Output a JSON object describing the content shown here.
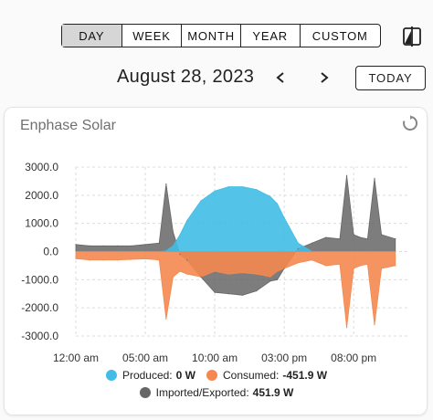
{
  "period": {
    "options": [
      "DAY",
      "WEEK",
      "MONTH",
      "YEAR",
      "CUSTOM"
    ],
    "selected": "DAY"
  },
  "date": {
    "title": "August 28, 2023",
    "prev_glyph": "‹",
    "next_glyph": "›",
    "today_label": "TODAY"
  },
  "card": {
    "title": "Enphase Solar"
  },
  "icons": {
    "compare": "compare-icon",
    "refresh": "refresh-icon",
    "prev": "chevron-left-icon",
    "next": "chevron-right-icon"
  },
  "colors": {
    "produced": "#41bde6",
    "consumed": "#f4884f",
    "imported": "#666666"
  },
  "legend": [
    {
      "key": "produced",
      "label": "Produced:",
      "value": "0 W"
    },
    {
      "key": "consumed",
      "label": "Consumed:",
      "value": "-451.9 W"
    },
    {
      "key": "imported",
      "label": "Imported/Exported:",
      "value": "451.9 W"
    }
  ],
  "chart_data": {
    "type": "area",
    "y_ticks": [
      "3000.0",
      "2000.0",
      "1000.0",
      "0.0",
      "-1000.0",
      "-2000.0",
      "-3000.0"
    ],
    "ylim": [
      -3000,
      3000
    ],
    "xlim": [
      0,
      24
    ],
    "x_ticks": [
      {
        "label": "12:00 am",
        "hour": 0
      },
      {
        "label": "05:00 am",
        "hour": 5
      },
      {
        "label": "10:00 am",
        "hour": 10
      },
      {
        "label": "03:00 pm",
        "hour": 15
      },
      {
        "label": "08:00 pm",
        "hour": 20
      }
    ],
    "grid": true,
    "legend_position": "bottom",
    "x": [
      0,
      1,
      2,
      3,
      4,
      5,
      6,
      6.5,
      7,
      7.5,
      8,
      9,
      10,
      11,
      12,
      13,
      14,
      14.5,
      15,
      16,
      17,
      18,
      19,
      19.5,
      20,
      20.5,
      21,
      21.5,
      22,
      23
    ],
    "series": [
      {
        "name": "Produced",
        "key": "produced",
        "values": [
          0,
          0,
          0,
          0,
          0,
          0,
          0,
          20,
          200,
          600,
          1100,
          1800,
          2150,
          2300,
          2300,
          2200,
          1950,
          1700,
          1200,
          300,
          0,
          0,
          0,
          0,
          0,
          0,
          0,
          0,
          0,
          0
        ]
      },
      {
        "name": "Consumed",
        "key": "consumed",
        "values": [
          -250,
          -300,
          -300,
          -300,
          -280,
          -260,
          -300,
          -2400,
          -900,
          -700,
          -800,
          -900,
          -700,
          -800,
          -750,
          -800,
          -900,
          -700,
          -600,
          -400,
          -300,
          -500,
          -450,
          -2700,
          -600,
          -500,
          -450,
          -2600,
          -600,
          -500
        ]
      },
      {
        "name": "Imported/Exported",
        "key": "imported",
        "values": [
          250,
          200,
          200,
          200,
          200,
          250,
          300,
          2400,
          700,
          -100,
          -300,
          -900,
          -1450,
          -1500,
          -1550,
          -1400,
          -1050,
          -1000,
          -600,
          100,
          300,
          500,
          450,
          2700,
          600,
          500,
          450,
          2600,
          600,
          450
        ]
      }
    ]
  }
}
